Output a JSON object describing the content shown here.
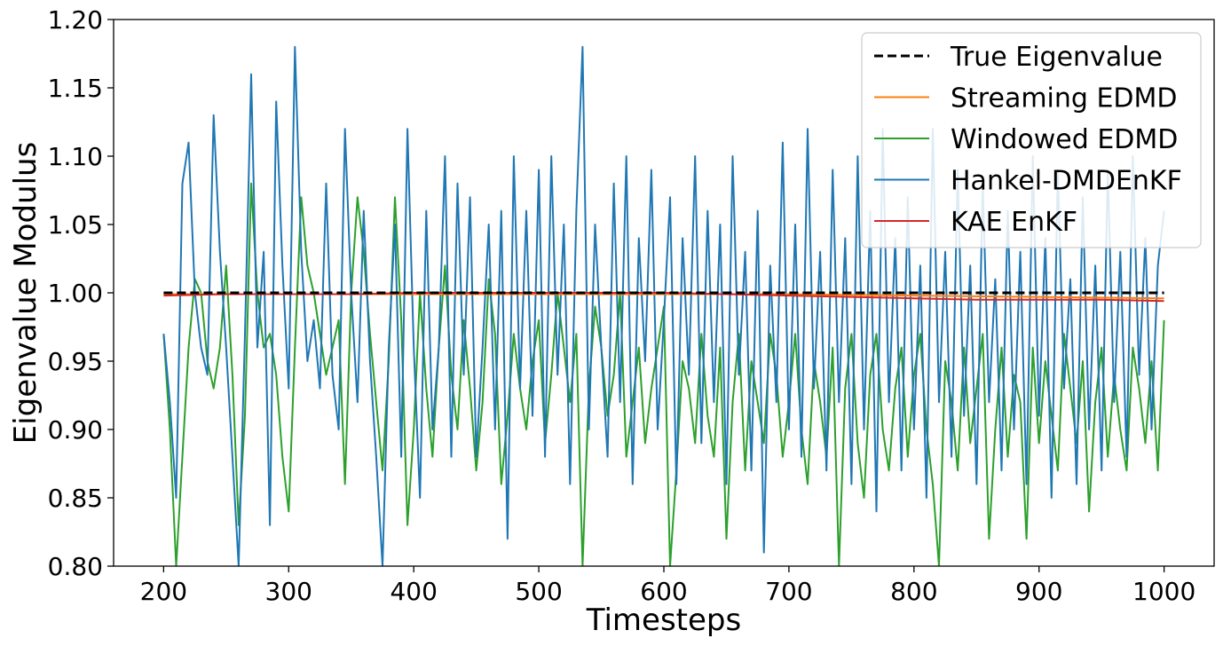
{
  "chart_data": {
    "type": "line",
    "title": "",
    "xlabel": "Timesteps",
    "ylabel": "Eigenvalue Modulus",
    "xlim": [
      160,
      1040
    ],
    "ylim": [
      0.8,
      1.2
    ],
    "xticks": [
      200,
      300,
      400,
      500,
      600,
      700,
      800,
      900,
      1000
    ],
    "xtick_labels": [
      "200",
      "300",
      "400",
      "500",
      "600",
      "700",
      "800",
      "900",
      "1000"
    ],
    "yticks": [
      0.8,
      0.85,
      0.9,
      0.95,
      1.0,
      1.05,
      1.1,
      1.15,
      1.2
    ],
    "ytick_labels": [
      "0.80",
      "0.85",
      "0.90",
      "0.95",
      "1.00",
      "1.05",
      "1.10",
      "1.15",
      "1.20"
    ],
    "grid": false,
    "legend_position": "top-right",
    "series": [
      {
        "name": "True Eigenvalue",
        "color": "#000000",
        "dashed": true,
        "x": [
          200,
          1000
        ],
        "y": [
          1.0,
          1.0
        ]
      },
      {
        "name": "Streaming EDMD",
        "color": "#ff7f0e",
        "dashed": false,
        "x": [
          200,
          300,
          400,
          500,
          600,
          700,
          800,
          900,
          1000
        ],
        "y": [
          0.999,
          0.999,
          0.999,
          0.999,
          0.999,
          0.999,
          0.998,
          0.997,
          0.996
        ]
      },
      {
        "name": "Windowed EDMD",
        "color": "#2ca02c",
        "dashed": false,
        "x": [
          200,
          205,
          210,
          215,
          220,
          225,
          230,
          235,
          240,
          245,
          250,
          255,
          260,
          265,
          270,
          275,
          280,
          285,
          290,
          295,
          300,
          305,
          310,
          315,
          320,
          325,
          330,
          335,
          340,
          345,
          350,
          355,
          360,
          365,
          370,
          375,
          380,
          385,
          390,
          395,
          400,
          405,
          410,
          415,
          420,
          425,
          430,
          435,
          440,
          445,
          450,
          455,
          460,
          465,
          470,
          475,
          480,
          485,
          490,
          495,
          500,
          505,
          510,
          515,
          520,
          525,
          530,
          535,
          540,
          545,
          550,
          555,
          560,
          565,
          570,
          575,
          580,
          585,
          590,
          595,
          600,
          605,
          610,
          615,
          620,
          625,
          630,
          635,
          640,
          645,
          650,
          655,
          660,
          665,
          670,
          675,
          680,
          685,
          690,
          695,
          700,
          705,
          710,
          715,
          720,
          725,
          730,
          735,
          740,
          745,
          750,
          755,
          760,
          765,
          770,
          775,
          780,
          785,
          790,
          795,
          800,
          805,
          810,
          815,
          820,
          825,
          830,
          835,
          840,
          845,
          850,
          855,
          860,
          865,
          870,
          875,
          880,
          885,
          890,
          895,
          900,
          905,
          910,
          915,
          920,
          925,
          930,
          935,
          940,
          945,
          950,
          955,
          960,
          965,
          970,
          975,
          980,
          985,
          990,
          995,
          1000
        ],
        "y": [
          0.97,
          0.9,
          0.8,
          0.88,
          0.96,
          1.01,
          1.0,
          0.95,
          0.93,
          0.96,
          1.02,
          0.94,
          0.83,
          0.91,
          1.08,
          1.0,
          0.96,
          0.97,
          0.94,
          0.88,
          0.84,
          0.96,
          1.07,
          1.02,
          1.0,
          0.97,
          0.94,
          0.96,
          0.98,
          0.86,
          1.0,
          1.07,
          1.03,
          0.97,
          0.92,
          0.87,
          0.95,
          1.07,
          0.98,
          0.83,
          0.9,
          1.0,
          0.93,
          0.88,
          0.96,
          1.02,
          0.94,
          0.9,
          0.98,
          0.93,
          0.87,
          0.92,
          1.01,
          0.97,
          0.86,
          0.91,
          0.97,
          0.93,
          0.9,
          0.95,
          0.98,
          0.89,
          0.94,
          1.0,
          0.96,
          0.92,
          0.97,
          0.8,
          0.93,
          0.99,
          0.96,
          0.91,
          0.94,
          1.0,
          0.88,
          0.92,
          0.96,
          0.89,
          0.93,
          0.96,
          0.99,
          0.8,
          0.87,
          0.95,
          0.93,
          0.89,
          0.97,
          0.91,
          0.88,
          0.96,
          0.82,
          0.92,
          0.97,
          0.87,
          0.95,
          0.92,
          0.89,
          0.97,
          0.94,
          0.88,
          0.92,
          0.97,
          0.9,
          0.86,
          0.95,
          0.92,
          0.88,
          0.96,
          0.8,
          0.93,
          0.97,
          0.89,
          0.85,
          0.94,
          0.97,
          0.9,
          0.87,
          0.93,
          0.96,
          0.88,
          0.94,
          0.97,
          0.9,
          0.86,
          0.8,
          0.95,
          0.92,
          0.87,
          0.96,
          0.89,
          0.93,
          0.97,
          0.82,
          0.9,
          0.96,
          0.88,
          0.94,
          0.92,
          0.82,
          0.96,
          0.89,
          0.95,
          0.91,
          0.87,
          0.97,
          0.93,
          0.89,
          0.95,
          0.84,
          0.92,
          0.96,
          0.88,
          0.94,
          0.9,
          0.87,
          0.96,
          0.93,
          0.89,
          0.95,
          0.87,
          0.98
        ]
      },
      {
        "name": "Hankel-DMDEnKF",
        "color": "#1f77b4",
        "dashed": false,
        "x": [
          200,
          205,
          210,
          215,
          220,
          225,
          230,
          235,
          240,
          245,
          250,
          255,
          260,
          265,
          270,
          275,
          280,
          285,
          290,
          295,
          300,
          305,
          310,
          315,
          320,
          325,
          330,
          335,
          340,
          345,
          350,
          355,
          360,
          365,
          370,
          375,
          380,
          385,
          390,
          395,
          400,
          405,
          410,
          415,
          420,
          425,
          430,
          435,
          440,
          445,
          450,
          455,
          460,
          465,
          470,
          475,
          480,
          485,
          490,
          495,
          500,
          505,
          510,
          515,
          520,
          525,
          530,
          535,
          540,
          545,
          550,
          555,
          560,
          565,
          570,
          575,
          580,
          585,
          590,
          595,
          600,
          605,
          610,
          615,
          620,
          625,
          630,
          635,
          640,
          645,
          650,
          655,
          660,
          665,
          670,
          675,
          680,
          685,
          690,
          695,
          700,
          705,
          710,
          715,
          720,
          725,
          730,
          735,
          740,
          745,
          750,
          755,
          760,
          765,
          770,
          775,
          780,
          785,
          790,
          795,
          800,
          805,
          810,
          815,
          820,
          825,
          830,
          835,
          840,
          845,
          850,
          855,
          860,
          865,
          870,
          875,
          880,
          885,
          890,
          895,
          900,
          905,
          910,
          915,
          920,
          925,
          930,
          935,
          940,
          945,
          950,
          955,
          960,
          965,
          970,
          975,
          980,
          985,
          990,
          995,
          1000
        ],
        "y": [
          0.97,
          0.92,
          0.85,
          1.08,
          1.11,
          1.0,
          0.96,
          0.94,
          1.13,
          1.03,
          0.96,
          0.88,
          0.8,
          0.97,
          1.16,
          0.96,
          1.03,
          0.83,
          1.14,
          1.02,
          0.93,
          1.18,
          1.03,
          0.95,
          0.98,
          0.93,
          1.08,
          0.94,
          0.9,
          1.12,
          1.0,
          0.92,
          1.06,
          0.95,
          0.88,
          0.8,
          0.96,
          1.05,
          0.88,
          1.12,
          0.96,
          0.85,
          1.06,
          0.9,
          0.96,
          1.1,
          0.88,
          1.08,
          0.94,
          1.07,
          0.88,
          0.96,
          1.05,
          0.9,
          1.06,
          0.82,
          1.1,
          0.93,
          1.06,
          0.91,
          1.09,
          0.88,
          1.1,
          0.94,
          1.05,
          0.86,
          1.06,
          1.18,
          0.9,
          1.05,
          0.96,
          0.88,
          1.08,
          0.92,
          1.1,
          0.86,
          1.04,
          0.95,
          1.09,
          0.9,
          0.98,
          1.07,
          0.86,
          1.04,
          0.94,
          1.1,
          0.89,
          1.06,
          0.92,
          1.05,
          0.86,
          1.1,
          0.94,
          1.03,
          0.87,
          1.06,
          0.81,
          1.02,
          0.92,
          1.11,
          0.9,
          1.05,
          0.88,
          1.12,
          0.93,
          1.03,
          0.87,
          1.09,
          0.92,
          1.04,
          0.86,
          1.1,
          0.9,
          1.06,
          0.84,
          1.12,
          0.92,
          1.04,
          0.87,
          1.07,
          0.9,
          1.02,
          0.85,
          1.12,
          0.92,
          1.03,
          0.88,
          1.09,
          0.91,
          1.02,
          0.86,
          1.08,
          0.92,
          1.01,
          0.87,
          1.06,
          0.9,
          1.03,
          0.86,
          1.1,
          0.91,
          1.04,
          0.85,
          1.09,
          0.93,
          1.01,
          0.86,
          1.07,
          0.9,
          1.02,
          0.87,
          1.09,
          0.92,
          1.03,
          0.88,
          1.1,
          0.94,
          1.04,
          0.9,
          1.02,
          1.06
        ]
      },
      {
        "name": "KAE EnKF",
        "color": "#d62728",
        "dashed": false,
        "x": [
          200,
          250,
          300,
          350,
          400,
          450,
          500,
          550,
          600,
          650,
          700,
          750,
          800,
          850,
          900,
          950,
          1000
        ],
        "y": [
          0.998,
          0.999,
          0.999,
          0.999,
          1.0,
          1.0,
          1.0,
          1.0,
          1.0,
          0.999,
          0.998,
          0.997,
          0.996,
          0.995,
          0.995,
          0.995,
          0.994
        ]
      }
    ]
  }
}
